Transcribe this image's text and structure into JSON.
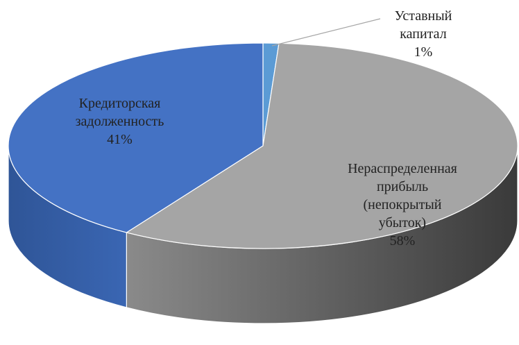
{
  "chart_data": {
    "type": "pie3d",
    "categories": [
      "Уставный капитал",
      "Нераспределенная прибыль (непокрытый убыток)",
      "Кредиторская задолженность"
    ],
    "values": [
      1,
      58,
      41
    ],
    "value_labels": [
      "1%",
      "58%",
      "41%"
    ],
    "colors": [
      "#5b9bd5",
      "#a5a5a5",
      "#4472c4"
    ]
  }
}
